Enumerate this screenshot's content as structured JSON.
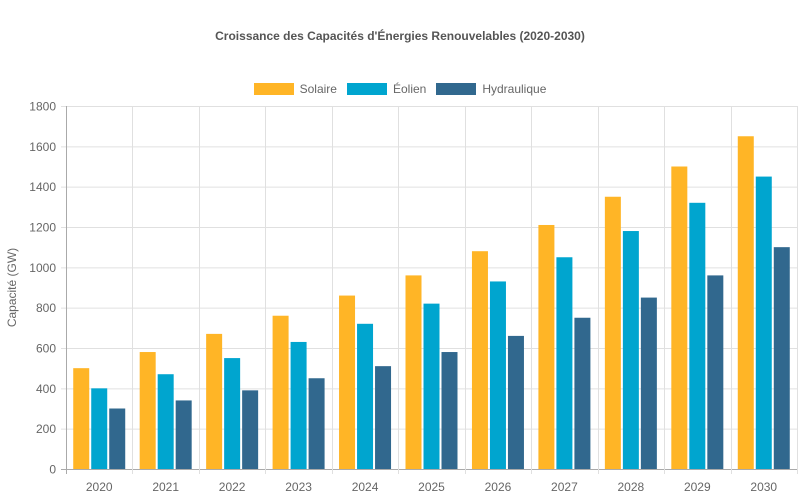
{
  "chart_data": {
    "type": "bar",
    "title": "Croissance des Capacités d'Énergies Renouvelables (2020-2030)",
    "xlabel": "",
    "ylabel": "Capacité (GW)",
    "ylim": [
      0,
      1800
    ],
    "yticks": [
      "0",
      "200",
      "400",
      "600",
      "800",
      "1000",
      "1200",
      "1400",
      "1600",
      "1800"
    ],
    "grid": true,
    "legend_position": "top",
    "categories": [
      "2020",
      "2021",
      "2022",
      "2023",
      "2024",
      "2025",
      "2026",
      "2027",
      "2028",
      "2029",
      "2030"
    ],
    "series": [
      {
        "name": "Solaire",
        "color": "#FFB526",
        "values": [
          500,
          580,
          670,
          760,
          860,
          960,
          1080,
          1210,
          1350,
          1500,
          1650
        ]
      },
      {
        "name": "Éolien",
        "color": "#00A5CF",
        "values": [
          400,
          470,
          550,
          630,
          720,
          820,
          930,
          1050,
          1180,
          1320,
          1450
        ]
      },
      {
        "name": "Hydraulique",
        "color": "#31688E",
        "values": [
          300,
          340,
          390,
          450,
          510,
          580,
          660,
          750,
          850,
          960,
          1100
        ]
      }
    ]
  }
}
